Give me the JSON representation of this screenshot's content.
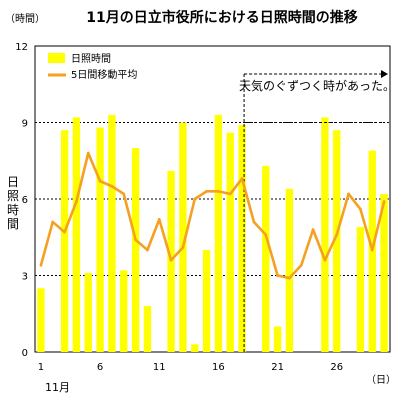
{
  "chart_data": {
    "type": "bar",
    "title": "11月の日立市役所における日照時間の推移",
    "y_unit": "（時間）",
    "ylabel": "日照時間",
    "x_unit": "（日）",
    "month_label": "11月",
    "ylim": [
      0,
      12
    ],
    "y_ticks": [
      "0",
      "3",
      "6",
      "9",
      "12"
    ],
    "x_tick_labels": [
      "1",
      "6",
      "11",
      "16",
      "21",
      "26"
    ],
    "x_tick_days": [
      1,
      6,
      11,
      16,
      21,
      26
    ],
    "grid": "dashed horizontal",
    "legend": {
      "placement": "top-left",
      "bar": "日照時間",
      "line": "5日間移動平均"
    },
    "annotation": "天気のぐずつく時があった。",
    "annotation_start_day": 18,
    "colors": {
      "bar": "#ffff00",
      "line": "#f5a020",
      "grid": "#000000"
    },
    "series": [
      {
        "name": "日照時間",
        "kind": "bar",
        "x": [
          1,
          2,
          3,
          4,
          5,
          6,
          7,
          8,
          9,
          10,
          11,
          12,
          13,
          14,
          15,
          16,
          17,
          18,
          19,
          20,
          21,
          22,
          23,
          24,
          25,
          26,
          27,
          28,
          29,
          30
        ],
        "values": [
          2.5,
          0,
          8.7,
          9.2,
          3.1,
          8.8,
          9.3,
          3.2,
          8.0,
          1.8,
          0,
          7.1,
          9.0,
          0.3,
          4.0,
          9.3,
          8.6,
          8.9,
          0,
          7.3,
          1.0,
          6.4,
          0,
          0,
          9.2,
          8.7,
          0,
          4.9,
          7.9,
          6.2
        ]
      },
      {
        "name": "5日間移動平均",
        "kind": "line",
        "x": [
          1,
          2,
          3,
          4,
          5,
          6,
          7,
          8,
          9,
          10,
          11,
          12,
          13,
          14,
          15,
          16,
          17,
          18,
          19,
          20,
          21,
          22,
          23,
          24,
          25,
          26,
          27,
          28,
          29,
          30
        ],
        "values": [
          3.4,
          5.1,
          4.7,
          5.9,
          7.8,
          6.7,
          6.5,
          6.2,
          4.4,
          4.0,
          5.2,
          3.6,
          4.1,
          6.0,
          6.3,
          6.3,
          6.2,
          6.8,
          5.1,
          4.6,
          3.0,
          2.9,
          3.4,
          4.8,
          3.6,
          4.6,
          6.2,
          5.6,
          4.0,
          5.9
        ]
      }
    ]
  }
}
